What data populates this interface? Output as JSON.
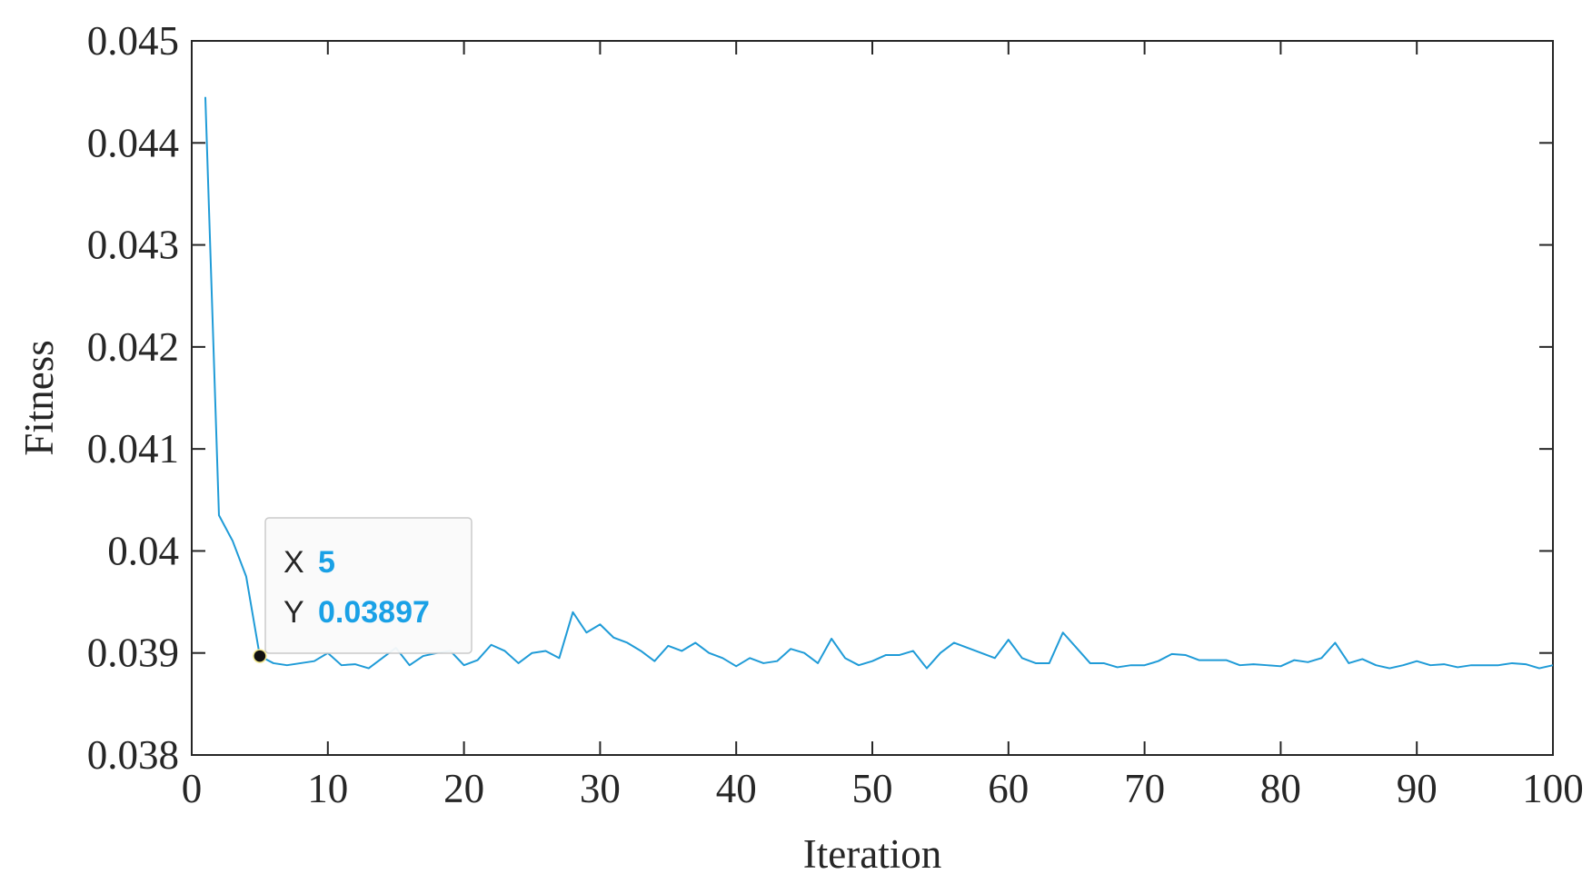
{
  "chart_data": {
    "type": "line",
    "x_label": "Iteration",
    "y_label": "Fitness",
    "x": [
      1,
      2,
      3,
      4,
      5,
      6,
      7,
      8,
      9,
      10,
      11,
      12,
      13,
      14,
      15,
      16,
      17,
      18,
      19,
      20,
      21,
      22,
      23,
      24,
      25,
      26,
      27,
      28,
      29,
      30,
      31,
      32,
      33,
      34,
      35,
      36,
      37,
      38,
      39,
      40,
      41,
      42,
      43,
      44,
      45,
      46,
      47,
      48,
      49,
      50,
      51,
      52,
      53,
      54,
      55,
      56,
      57,
      58,
      59,
      60,
      61,
      62,
      63,
      64,
      65,
      66,
      67,
      68,
      69,
      70,
      71,
      72,
      73,
      74,
      75,
      76,
      77,
      78,
      79,
      80,
      81,
      82,
      83,
      84,
      85,
      86,
      87,
      88,
      89,
      90,
      91,
      92,
      93,
      94,
      95,
      96,
      97,
      98,
      99,
      100
    ],
    "series": [
      {
        "color": "#1f9bd7",
        "values": [
          0.04445,
          0.04035,
          0.0401,
          0.03975,
          0.03897,
          0.0389,
          0.03888,
          0.0389,
          0.03892,
          0.039,
          0.03888,
          0.03889,
          0.03885,
          0.03895,
          0.03905,
          0.03888,
          0.03897,
          0.039,
          0.03902,
          0.03888,
          0.03893,
          0.03908,
          0.03902,
          0.0389,
          0.039,
          0.03902,
          0.03895,
          0.0394,
          0.0392,
          0.03928,
          0.03915,
          0.0391,
          0.03902,
          0.03892,
          0.03907,
          0.03902,
          0.0391,
          0.039,
          0.03895,
          0.03887,
          0.03895,
          0.0389,
          0.03892,
          0.03904,
          0.039,
          0.0389,
          0.03914,
          0.03895,
          0.03888,
          0.03892,
          0.03898,
          0.03898,
          0.03902,
          0.03885,
          0.039,
          0.0391,
          0.03905,
          0.039,
          0.03895,
          0.03913,
          0.03895,
          0.0389,
          0.0389,
          0.0392,
          0.03905,
          0.0389,
          0.0389,
          0.03886,
          0.03888,
          0.03888,
          0.03892,
          0.03899,
          0.03898,
          0.03893,
          0.03893,
          0.03893,
          0.03888,
          0.03889,
          0.03888,
          0.03887,
          0.03893,
          0.03891,
          0.03895,
          0.0391,
          0.0389,
          0.03894,
          0.03888,
          0.03885,
          0.03888,
          0.03892,
          0.03888,
          0.03889,
          0.03886,
          0.03888,
          0.03888,
          0.03888,
          0.0389,
          0.03889,
          0.03885,
          0.03888
        ]
      }
    ],
    "xlim": [
      0,
      100
    ],
    "xticks": [
      0,
      10,
      20,
      30,
      40,
      50,
      60,
      70,
      80,
      90,
      100
    ],
    "ylim": [
      0.038,
      0.045
    ],
    "yticks": [
      0.038,
      0.039,
      0.04,
      0.041,
      0.042,
      0.043,
      0.044,
      0.045
    ],
    "datatip": {
      "x_name": "X",
      "y_name": "Y",
      "x": 5,
      "y": 0.03897
    }
  }
}
